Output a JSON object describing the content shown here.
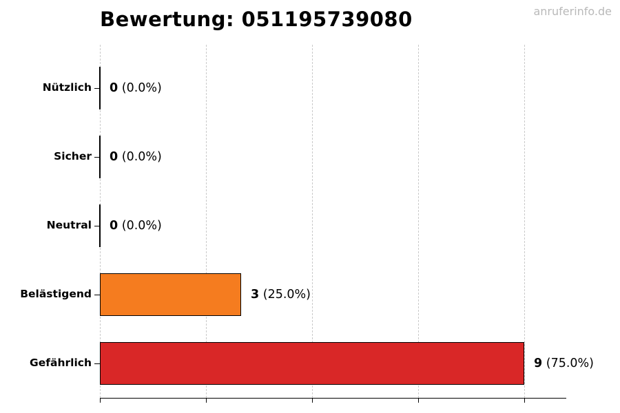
{
  "title": "Bewertung: 051195739080",
  "watermark": "anruferinfo.de",
  "chart_data": {
    "type": "bar",
    "orientation": "horizontal",
    "title": "Bewertung: 051195739080",
    "categories": [
      "Nützlich",
      "Sicher",
      "Neutral",
      "Belästigend",
      "Gefährlich"
    ],
    "values": [
      0,
      0,
      0,
      3,
      9
    ],
    "percent_labels": [
      "0.0%",
      "0.0%",
      "0.0%",
      "25.0%",
      "75.0%"
    ],
    "value_labels": [
      "0 (0.0%)",
      "0 (0.0%)",
      "0 (0.0%)",
      "3 (25.0%)",
      "9 (75.0%)"
    ],
    "bar_colors": [
      null,
      null,
      null,
      "#f57c1f",
      "#d92727"
    ],
    "bar_edge_color": "#000000",
    "xlim": [
      0,
      9.9
    ],
    "xticks": [
      0,
      2.25,
      4.5,
      6.75,
      9
    ],
    "grid": "vertical-dashed",
    "legend": "none"
  },
  "colors": {
    "background": "#ffffff",
    "orange": "#f57c1f",
    "red": "#d92727",
    "grid": "#c9c9c9",
    "axis": "#000000",
    "watermark_gray": "#b9b9b9"
  }
}
